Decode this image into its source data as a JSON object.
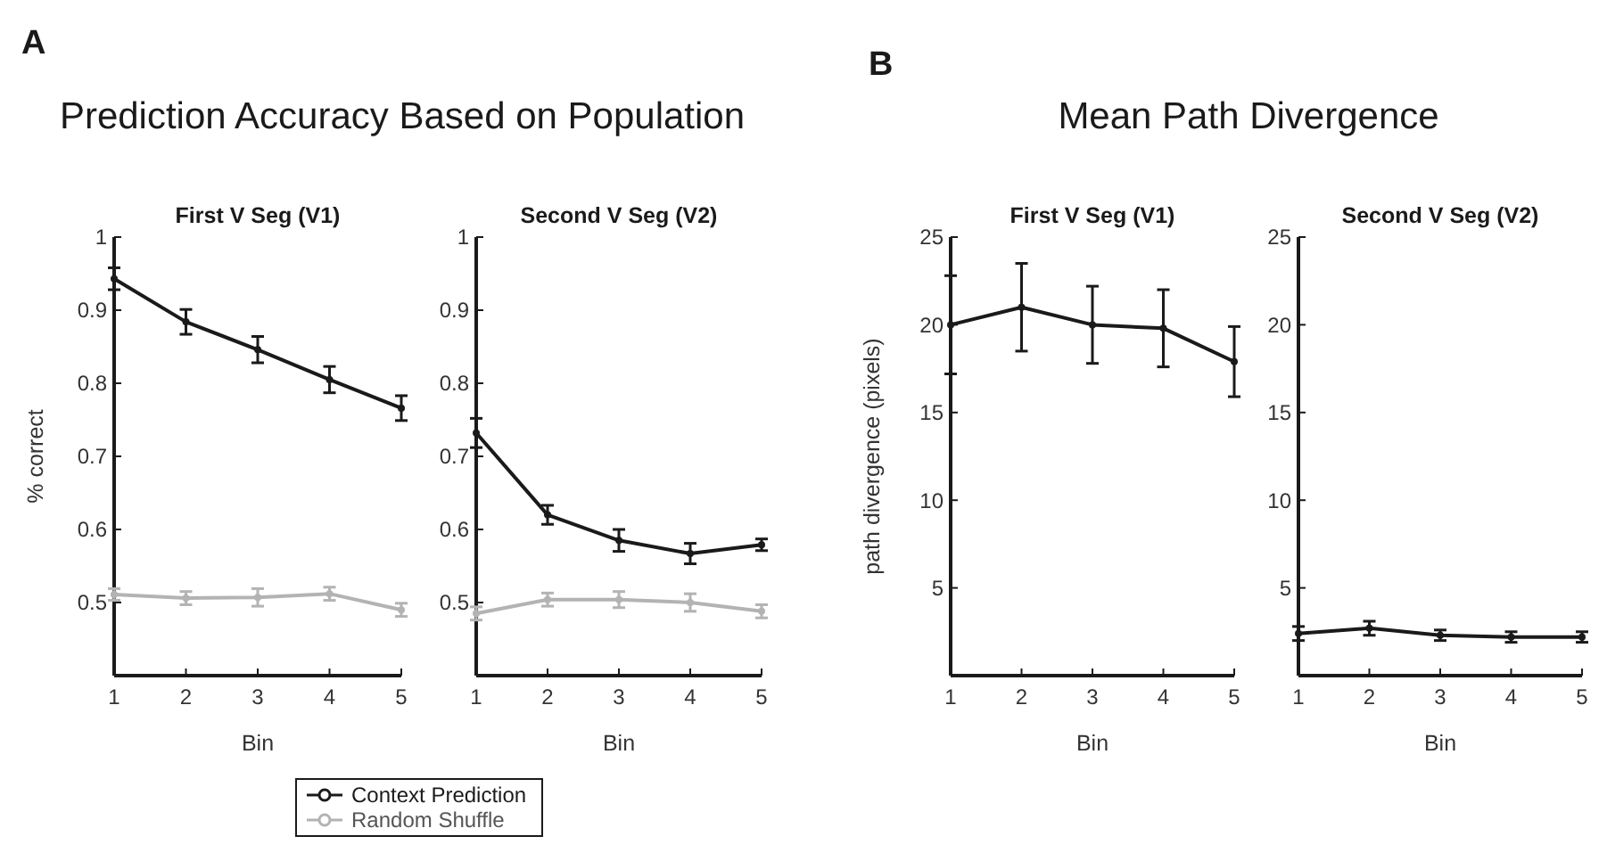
{
  "chart_data": [
    {
      "type": "line",
      "title": "First V Seg (V1)",
      "xlabel": "Bin",
      "ylabel": "% correct",
      "annotations": [
        "A",
        "Prediction Accuracy Based on Population"
      ],
      "x": [
        1,
        2,
        3,
        4,
        5
      ],
      "xlim": [
        1,
        5
      ],
      "xticks": [
        1,
        2,
        3,
        4,
        5
      ],
      "ylim": [
        0.4,
        1
      ],
      "yticks": [
        0.5,
        0.6,
        0.7,
        0.8,
        0.9,
        1
      ],
      "marker": "circle",
      "line_style": "solid",
      "legend": "bottom",
      "series": [
        {
          "name": "Context Prediction",
          "color": "#1a1a1a",
          "values": [
            0.943,
            0.884,
            0.846,
            0.805,
            0.766
          ],
          "errors": [
            0.015,
            0.017,
            0.018,
            0.018,
            0.017
          ]
        },
        {
          "name": "Random Shuffle",
          "color": "#b3b3b3",
          "values": [
            0.511,
            0.506,
            0.507,
            0.512,
            0.49
          ],
          "errors": [
            0.008,
            0.009,
            0.012,
            0.009,
            0.009
          ]
        }
      ]
    },
    {
      "type": "line",
      "title": "Second V Seg (V2)",
      "xlabel": "Bin",
      "x": [
        1,
        2,
        3,
        4,
        5
      ],
      "xlim": [
        1,
        5
      ],
      "xticks": [
        1,
        2,
        3,
        4,
        5
      ],
      "ylim": [
        0.4,
        1
      ],
      "yticks": [
        0.5,
        0.6,
        0.7,
        0.8,
        0.9,
        1
      ],
      "marker": "circle",
      "line_style": "solid",
      "series": [
        {
          "color": "#1a1a1a",
          "values": [
            0.732,
            0.62,
            0.585,
            0.567,
            0.579
          ],
          "errors": [
            0.02,
            0.013,
            0.015,
            0.014,
            0.008
          ]
        },
        {
          "color": "#b3b3b3",
          "values": [
            0.485,
            0.504,
            0.504,
            0.5,
            0.488
          ],
          "errors": [
            0.009,
            0.009,
            0.011,
            0.012,
            0.009
          ]
        }
      ]
    },
    {
      "type": "line",
      "title": "First V Seg (V1)",
      "xlabel": "Bin",
      "ylabel": "path divergence (pixels)",
      "annotations": [
        "B",
        "Mean Path Divergence"
      ],
      "x": [
        1,
        2,
        3,
        4,
        5
      ],
      "xlim": [
        1,
        5
      ],
      "xticks": [
        1,
        2,
        3,
        4,
        5
      ],
      "ylim": [
        0,
        25
      ],
      "yticks": [
        5,
        10,
        15,
        20,
        25
      ],
      "marker": "circle",
      "line_style": "solid",
      "series": [
        {
          "color": "#1a1a1a",
          "values": [
            20,
            21,
            20,
            19.8,
            17.9
          ],
          "errors": [
            2.8,
            2.5,
            2.2,
            2.2,
            2
          ]
        }
      ]
    },
    {
      "type": "line",
      "title": "Second V Seg (V2)",
      "xlabel": "Bin",
      "x": [
        1,
        2,
        3,
        4,
        5
      ],
      "xlim": [
        1,
        5
      ],
      "xticks": [
        1,
        2,
        3,
        4,
        5
      ],
      "ylim": [
        0,
        25
      ],
      "yticks": [
        5,
        10,
        15,
        20,
        25
      ],
      "marker": "circle",
      "line_style": "solid",
      "series": [
        {
          "color": "#1a1a1a",
          "values": [
            2.4,
            2.7,
            2.3,
            2.2,
            2.2
          ],
          "errors": [
            0.4,
            0.4,
            0.3,
            0.3,
            0.3
          ]
        }
      ]
    }
  ]
}
